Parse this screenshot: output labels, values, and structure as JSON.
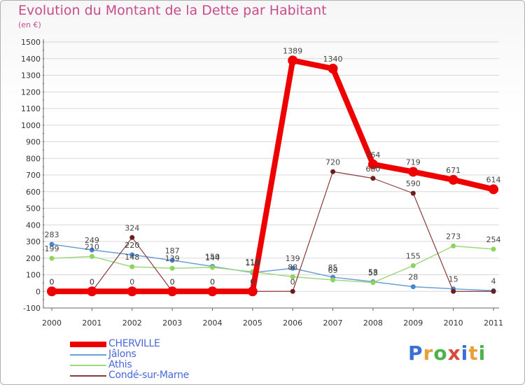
{
  "title": "Evolution du Montant de la Dette par Habitant",
  "subtitle": "(en €)",
  "logo": {
    "text": "Proxiti",
    "colors": [
      "#3b6fd6",
      "#e8a13a",
      "#4ab44a",
      "#d84b3a",
      "#3b6fd6",
      "#e8a13a",
      "#4ab44a"
    ]
  },
  "colors": {
    "title": "#c84b8c",
    "legend_text": "#4a68d8",
    "axis": "#555555",
    "grid": "#d8d8d8"
  },
  "chart_data": {
    "type": "line",
    "title": "Evolution du Montant de la Dette par Habitant",
    "subtitle": "(en €)",
    "x": [
      "2000",
      "2001",
      "2002",
      "2003",
      "2004",
      "2005",
      "2006",
      "2007",
      "2008",
      "2009",
      "2010",
      "2011"
    ],
    "ylim": [
      -100,
      1500
    ],
    "yticks": [
      "-100",
      "0",
      "100",
      "200",
      "300",
      "400",
      "500",
      "600",
      "700",
      "800",
      "900",
      "1000",
      "1100",
      "1200",
      "1300",
      "1400",
      "1500"
    ],
    "grid": true,
    "legend_position": "bottom-left",
    "series": [
      {
        "name": "CHERVILLE",
        "color": "#ee0000",
        "marker_color": "#ee0000",
        "width": 8,
        "marker": 7,
        "values": [
          0,
          0,
          0,
          0,
          0,
          0,
          1389,
          1340,
          764,
          719,
          671,
          614
        ],
        "labels": [
          "0",
          "0",
          "0",
          "0",
          "0",
          "0",
          "1389",
          "1340",
          "764",
          "719",
          "671",
          "614"
        ]
      },
      {
        "name": "Jâlons",
        "color": "#6a9fd8",
        "marker_color": "#4a86cf",
        "width": 1.5,
        "marker": 3.5,
        "values": [
          283,
          249,
          220,
          187,
          150,
          113,
          139,
          85,
          58,
          28,
          15,
          4
        ],
        "labels": [
          "283",
          "249",
          "220",
          "187",
          "150",
          "113",
          "139",
          "85",
          "58",
          "28",
          "15",
          "4"
        ]
      },
      {
        "name": "Athis",
        "color": "#9ed880",
        "marker_color": "#8fd45a",
        "width": 1.5,
        "marker": 3.5,
        "values": [
          199,
          210,
          148,
          139,
          144,
          118,
          88,
          69,
          53,
          155,
          273,
          254
        ],
        "labels": [
          "199",
          "210",
          "148",
          "139",
          "144",
          "118",
          "88",
          "69",
          "53",
          "155",
          "273",
          "254"
        ]
      },
      {
        "name": "Condé-sur-Marne",
        "color": "#8a3a3a",
        "marker_color": "#6b1e1e",
        "width": 1.2,
        "marker": 3.5,
        "values": [
          0,
          0,
          324,
          0,
          0,
          0,
          0,
          720,
          680,
          590,
          0,
          0
        ],
        "labels": [
          "0",
          "0",
          "324",
          "0",
          "0",
          "0",
          "0",
          "720",
          "680",
          "590",
          "",
          ""
        ]
      }
    ]
  }
}
